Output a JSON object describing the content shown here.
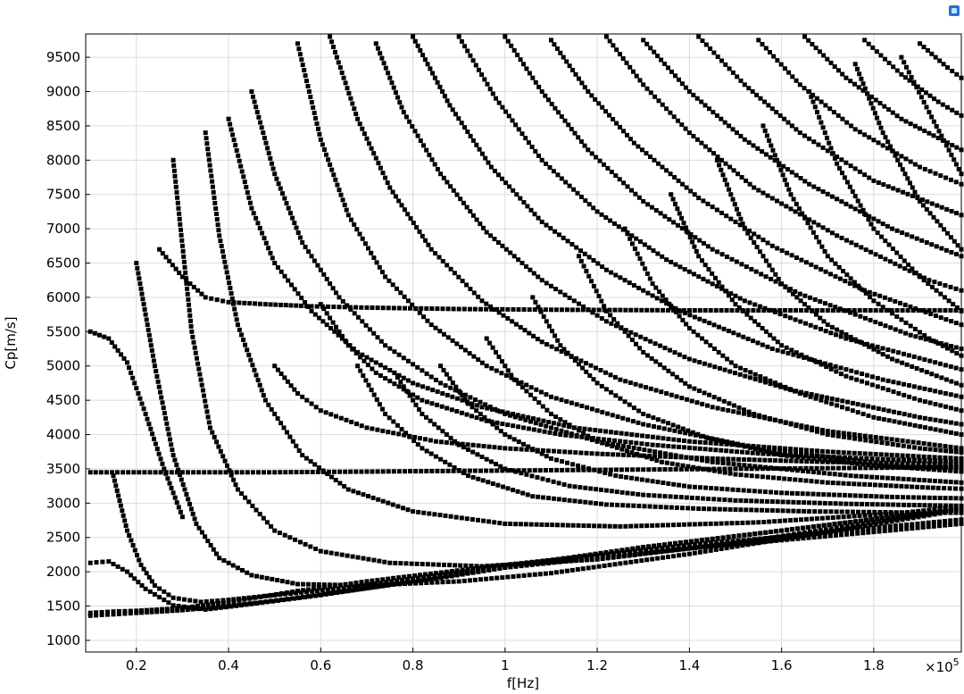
{
  "chart_data": {
    "type": "scatter",
    "title": "",
    "xlabel": "f[Hz]",
    "ylabel": "Cp[m/s]",
    "x_exponent_label": "×10",
    "x_exponent": "5",
    "xlim": [
      0.09,
      1.99
    ],
    "ylim": [
      830,
      9840
    ],
    "x_ticks": [
      {
        "value": 0.2,
        "label": "0.2"
      },
      {
        "value": 0.4,
        "label": "0.4"
      },
      {
        "value": 0.6,
        "label": "0.6"
      },
      {
        "value": 0.8,
        "label": "0.8"
      },
      {
        "value": 1.0,
        "label": "1"
      },
      {
        "value": 1.2,
        "label": "1.2"
      },
      {
        "value": 1.4,
        "label": "1.4"
      },
      {
        "value": 1.6,
        "label": "1.6"
      },
      {
        "value": 1.8,
        "label": "1.8"
      }
    ],
    "y_ticks": [
      {
        "value": 1000,
        "label": "1000"
      },
      {
        "value": 1500,
        "label": "1500"
      },
      {
        "value": 2000,
        "label": "2000"
      },
      {
        "value": 2500,
        "label": "2500"
      },
      {
        "value": 3000,
        "label": "3000"
      },
      {
        "value": 3500,
        "label": "3500"
      },
      {
        "value": 4000,
        "label": "4000"
      },
      {
        "value": 4500,
        "label": "4500"
      },
      {
        "value": 5000,
        "label": "5000"
      },
      {
        "value": 5500,
        "label": "5500"
      },
      {
        "value": 6000,
        "label": "6000"
      },
      {
        "value": 6500,
        "label": "6500"
      },
      {
        "value": 7000,
        "label": "7000"
      },
      {
        "value": 7500,
        "label": "7500"
      },
      {
        "value": 8000,
        "label": "8000"
      },
      {
        "value": 8500,
        "label": "8500"
      },
      {
        "value": 9000,
        "label": "9000"
      },
      {
        "value": 9500,
        "label": "9500"
      }
    ],
    "grid": true,
    "legend": "none",
    "marker_color": "#000000",
    "series": [
      {
        "x": [
          0.1,
          0.15,
          0.2,
          0.3,
          0.4,
          0.55,
          0.7,
          0.85,
          1.0,
          1.2,
          1.4,
          1.6,
          1.8,
          1.99
        ],
        "y": [
          1360,
          1380,
          1400,
          1440,
          1500,
          1620,
          1760,
          1900,
          2060,
          2200,
          2340,
          2460,
          2580,
          2700
        ]
      },
      {
        "x": [
          0.1,
          0.15,
          0.2,
          0.3,
          0.4,
          0.55,
          0.7,
          0.85,
          1.0,
          1.2,
          1.4,
          1.6,
          1.8,
          1.99
        ],
        "y": [
          1400,
          1420,
          1430,
          1470,
          1560,
          1720,
          1860,
          1980,
          2100,
          2240,
          2390,
          2510,
          2640,
          2760
        ]
      },
      {
        "x": [
          0.1,
          0.14,
          0.18,
          0.22,
          0.28,
          0.35,
          0.45,
          0.6,
          0.8,
          1.0,
          1.3,
          1.6,
          1.9
        ],
        "y": [
          2130,
          2150,
          2000,
          1750,
          1510,
          1450,
          1530,
          1660,
          1860,
          2070,
          2360,
          2600,
          2850
        ]
      },
      {
        "x": [
          0.1,
          0.14,
          0.18,
          0.22,
          0.26,
          0.3
        ],
        "y": [
          5500,
          5400,
          5050,
          4300,
          3500,
          2800
        ]
      },
      {
        "x": [
          0.15,
          0.18,
          0.21,
          0.24,
          0.28,
          0.34,
          0.4,
          0.5,
          0.65,
          0.8,
          1.0,
          1.3,
          1.6,
          1.99
        ],
        "y": [
          3400,
          2600,
          2100,
          1800,
          1620,
          1560,
          1590,
          1660,
          1760,
          1900,
          2080,
          2350,
          2600,
          2920
        ]
      },
      {
        "x": [
          0.2,
          0.24,
          0.28,
          0.33,
          0.38,
          0.45,
          0.55,
          0.7,
          0.9,
          1.1,
          1.4,
          1.7,
          1.99
        ],
        "y": [
          6500,
          5000,
          3700,
          2700,
          2200,
          1950,
          1820,
          1800,
          1860,
          1980,
          2260,
          2580,
          2900
        ]
      },
      {
        "x": [
          0.25,
          0.3,
          0.35,
          0.4,
          0.48,
          0.58,
          0.7,
          0.9,
          1.1,
          1.4,
          1.7,
          1.99
        ],
        "y": [
          6700,
          6300,
          6000,
          5930,
          5900,
          5870,
          5850,
          5830,
          5820,
          5810,
          5810,
          5810
        ]
      },
      {
        "x": [
          0.1,
          0.3,
          0.5,
          0.7,
          0.9,
          1.1,
          1.3,
          1.5,
          1.7,
          1.9,
          1.99
        ],
        "y": [
          3450,
          3450,
          3450,
          3460,
          3470,
          3480,
          3490,
          3500,
          3510,
          3520,
          3530
        ]
      },
      {
        "x": [
          0.28,
          0.32,
          0.36,
          0.42,
          0.5,
          0.6,
          0.75,
          0.95,
          1.2,
          1.5,
          1.8,
          1.99
        ],
        "y": [
          8000,
          5500,
          4100,
          3200,
          2600,
          2300,
          2130,
          2080,
          2180,
          2420,
          2720,
          2920
        ]
      },
      {
        "x": [
          0.35,
          0.38,
          0.42,
          0.48,
          0.56,
          0.66,
          0.8,
          1.0,
          1.25,
          1.55,
          1.85,
          1.99
        ],
        "y": [
          8400,
          6900,
          5600,
          4500,
          3700,
          3200,
          2880,
          2700,
          2660,
          2720,
          2850,
          2950
        ]
      },
      {
        "x": [
          0.4,
          0.45,
          0.5,
          0.58,
          0.68,
          0.8,
          0.95,
          1.15,
          1.4,
          1.7,
          1.99
        ],
        "y": [
          8600,
          7300,
          6500,
          5800,
          5200,
          4750,
          4400,
          4100,
          3900,
          3750,
          3650
        ]
      },
      {
        "x": [
          0.45,
          0.5,
          0.56,
          0.64,
          0.74,
          0.86,
          1.0,
          1.2,
          1.45,
          1.75,
          1.99
        ],
        "y": [
          9000,
          7800,
          6800,
          6000,
          5300,
          4750,
          4300,
          3900,
          3600,
          3400,
          3300
        ]
      },
      {
        "x": [
          0.55,
          0.6,
          0.66,
          0.74,
          0.84,
          0.96,
          1.1,
          1.3,
          1.55,
          1.85,
          1.99
        ],
        "y": [
          9700,
          8300,
          7200,
          6300,
          5600,
          5000,
          4550,
          4150,
          3800,
          3550,
          3480
        ]
      },
      {
        "x": [
          0.62,
          0.68,
          0.75,
          0.84,
          0.95,
          1.08,
          1.25,
          1.45,
          1.7,
          1.99
        ],
        "y": [
          9800,
          8600,
          7600,
          6700,
          5950,
          5350,
          4800,
          4400,
          4050,
          3800
        ]
      },
      {
        "x": [
          0.72,
          0.78,
          0.86,
          0.96,
          1.08,
          1.22,
          1.4,
          1.62,
          1.9,
          1.99
        ],
        "y": [
          9700,
          8700,
          7800,
          6950,
          6250,
          5650,
          5100,
          4650,
          4250,
          4150
        ]
      },
      {
        "x": [
          0.8,
          0.88,
          0.97,
          1.08,
          1.22,
          1.38,
          1.58,
          1.82,
          1.99
        ],
        "y": [
          9800,
          8800,
          7900,
          7100,
          6400,
          5800,
          5250,
          4800,
          4550
        ]
      },
      {
        "x": [
          0.9,
          0.98,
          1.08,
          1.2,
          1.35,
          1.52,
          1.74,
          1.99
        ],
        "y": [
          9800,
          8900,
          8000,
          7250,
          6550,
          5950,
          5400,
          4950
        ]
      },
      {
        "x": [
          1.0,
          1.08,
          1.18,
          1.3,
          1.45,
          1.64,
          1.88,
          1.99
        ],
        "y": [
          9800,
          9000,
          8150,
          7400,
          6700,
          6050,
          5450,
          5250
        ]
      },
      {
        "x": [
          1.1,
          1.18,
          1.28,
          1.42,
          1.58,
          1.78,
          1.99
        ],
        "y": [
          9750,
          9000,
          8250,
          7450,
          6750,
          6100,
          5600
        ]
      },
      {
        "x": [
          1.22,
          1.3,
          1.4,
          1.54,
          1.72,
          1.92,
          1.99
        ],
        "y": [
          9800,
          9100,
          8400,
          7600,
          6900,
          6250,
          6100
        ]
      },
      {
        "x": [
          1.3,
          1.4,
          1.52,
          1.66,
          1.84,
          1.99
        ],
        "y": [
          9750,
          9000,
          8300,
          7650,
          7000,
          6600
        ]
      },
      {
        "x": [
          1.42,
          1.52,
          1.64,
          1.8,
          1.99
        ],
        "y": [
          9800,
          9100,
          8400,
          7700,
          7200
        ]
      },
      {
        "x": [
          1.55,
          1.64,
          1.76,
          1.9,
          1.99
        ],
        "y": [
          9750,
          9100,
          8450,
          7900,
          7650
        ]
      },
      {
        "x": [
          1.65,
          1.74,
          1.86,
          1.99
        ],
        "y": [
          9800,
          9200,
          8600,
          8150
        ]
      },
      {
        "x": [
          1.78,
          1.86,
          1.94,
          1.99
        ],
        "y": [
          9750,
          9250,
          8850,
          8650
        ]
      },
      {
        "x": [
          1.9,
          1.96,
          1.99
        ],
        "y": [
          9700,
          9350,
          9200
        ]
      },
      {
        "x": [
          0.5,
          0.55,
          0.6,
          0.7,
          0.85,
          1.0,
          1.2,
          1.45,
          1.7,
          1.99
        ],
        "y": [
          5000,
          4600,
          4350,
          4100,
          3900,
          3800,
          3720,
          3650,
          3600,
          3560
        ]
      },
      {
        "x": [
          0.6,
          0.66,
          0.72,
          0.82,
          0.96,
          1.12,
          1.32,
          1.56,
          1.82,
          1.99
        ],
        "y": [
          5900,
          5300,
          4900,
          4500,
          4200,
          4000,
          3850,
          3720,
          3640,
          3600
        ]
      },
      {
        "x": [
          0.68,
          0.74,
          0.82,
          0.92,
          1.06,
          1.22,
          1.42,
          1.66,
          1.92,
          1.99
        ],
        "y": [
          5000,
          4300,
          3800,
          3400,
          3100,
          2980,
          2920,
          2880,
          2860,
          2860
        ]
      },
      {
        "x": [
          0.76,
          0.82,
          0.9,
          1.0,
          1.14,
          1.3,
          1.5,
          1.74,
          1.99
        ],
        "y": [
          4900,
          4300,
          3850,
          3500,
          3250,
          3120,
          3040,
          2990,
          2960
        ]
      },
      {
        "x": [
          0.86,
          0.92,
          1.0,
          1.1,
          1.24,
          1.4,
          1.6,
          1.84,
          1.99
        ],
        "y": [
          5000,
          4450,
          4000,
          3650,
          3400,
          3240,
          3150,
          3090,
          3070
        ]
      },
      {
        "x": [
          0.96,
          1.02,
          1.1,
          1.2,
          1.34,
          1.5,
          1.7,
          1.94,
          1.99
        ],
        "y": [
          5400,
          4800,
          4300,
          3900,
          3600,
          3420,
          3300,
          3220,
          3210
        ]
      },
      {
        "x": [
          1.06,
          1.12,
          1.2,
          1.3,
          1.44,
          1.6,
          1.8,
          1.99
        ],
        "y": [
          6000,
          5300,
          4750,
          4300,
          3950,
          3700,
          3550,
          3460
        ]
      },
      {
        "x": [
          1.16,
          1.22,
          1.3,
          1.4,
          1.54,
          1.7,
          1.9,
          1.99
        ],
        "y": [
          6600,
          5800,
          5200,
          4700,
          4300,
          4000,
          3800,
          3740
        ]
      },
      {
        "x": [
          1.26,
          1.32,
          1.4,
          1.5,
          1.64,
          1.8,
          1.99
        ],
        "y": [
          7000,
          6200,
          5550,
          5000,
          4600,
          4250,
          4000
        ]
      },
      {
        "x": [
          1.36,
          1.42,
          1.5,
          1.6,
          1.74,
          1.9,
          1.99
        ],
        "y": [
          7500,
          6600,
          5900,
          5300,
          4850,
          4500,
          4350
        ]
      },
      {
        "x": [
          1.46,
          1.52,
          1.6,
          1.7,
          1.84,
          1.99
        ],
        "y": [
          8000,
          7000,
          6200,
          5600,
          5100,
          4720
        ]
      },
      {
        "x": [
          1.56,
          1.62,
          1.7,
          1.8,
          1.92,
          1.99
        ],
        "y": [
          8500,
          7500,
          6600,
          5950,
          5400,
          5150
        ]
      },
      {
        "x": [
          1.66,
          1.72,
          1.8,
          1.9,
          1.99
        ],
        "y": [
          9000,
          7950,
          7000,
          6300,
          5800
        ]
      },
      {
        "x": [
          1.76,
          1.82,
          1.9,
          1.99
        ],
        "y": [
          9400,
          8400,
          7400,
          6700
        ]
      },
      {
        "x": [
          1.86,
          1.92,
          1.99
        ],
        "y": [
          9500,
          8700,
          7800
        ]
      }
    ]
  }
}
